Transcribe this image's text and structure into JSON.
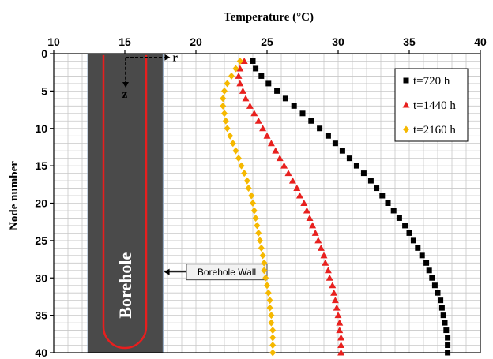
{
  "chart_data": {
    "type": "scatter",
    "title": "",
    "xlabel": "Temperature (°C)",
    "ylabel": "Node number",
    "x_axis_position": "top",
    "y_axis_inverted": true,
    "xlim": [
      10,
      40
    ],
    "ylim": [
      0,
      40
    ],
    "x_ticks": [
      10,
      15,
      20,
      25,
      30,
      35,
      40
    ],
    "y_ticks": [
      0,
      5,
      10,
      15,
      20,
      25,
      30,
      35,
      40
    ],
    "grid": true,
    "legend_position": "top-right",
    "series": [
      {
        "name": "t=720 h",
        "marker": "square",
        "color": "#000000",
        "points": [
          [
            24.0,
            1
          ],
          [
            24.2,
            2
          ],
          [
            24.6,
            3
          ],
          [
            25.1,
            4
          ],
          [
            25.7,
            5
          ],
          [
            26.3,
            6
          ],
          [
            26.9,
            7
          ],
          [
            27.5,
            8
          ],
          [
            28.1,
            9
          ],
          [
            28.7,
            10
          ],
          [
            29.3,
            11
          ],
          [
            29.8,
            12
          ],
          [
            30.3,
            13
          ],
          [
            30.8,
            14
          ],
          [
            31.3,
            15
          ],
          [
            31.8,
            16
          ],
          [
            32.3,
            17
          ],
          [
            32.7,
            18
          ],
          [
            33.1,
            19
          ],
          [
            33.5,
            20
          ],
          [
            33.9,
            21
          ],
          [
            34.3,
            22
          ],
          [
            34.7,
            23
          ],
          [
            35.0,
            24
          ],
          [
            35.3,
            25
          ],
          [
            35.6,
            26
          ],
          [
            35.9,
            27
          ],
          [
            36.2,
            28
          ],
          [
            36.4,
            29
          ],
          [
            36.6,
            30
          ],
          [
            36.8,
            31
          ],
          [
            37.0,
            32
          ],
          [
            37.2,
            33
          ],
          [
            37.3,
            34
          ],
          [
            37.4,
            35
          ],
          [
            37.5,
            36
          ],
          [
            37.6,
            37
          ],
          [
            37.7,
            38
          ],
          [
            37.7,
            39
          ],
          [
            37.7,
            40
          ]
        ]
      },
      {
        "name": "t=1440 h",
        "marker": "triangle",
        "color": "#e8201e",
        "points": [
          [
            23.4,
            1
          ],
          [
            23.1,
            2
          ],
          [
            23.0,
            3
          ],
          [
            23.1,
            4
          ],
          [
            23.3,
            5
          ],
          [
            23.5,
            6
          ],
          [
            23.8,
            7
          ],
          [
            24.1,
            8
          ],
          [
            24.4,
            9
          ],
          [
            24.7,
            10
          ],
          [
            25.0,
            11
          ],
          [
            25.3,
            12
          ],
          [
            25.6,
            13
          ],
          [
            25.9,
            14
          ],
          [
            26.2,
            15
          ],
          [
            26.5,
            16
          ],
          [
            26.8,
            17
          ],
          [
            27.1,
            18
          ],
          [
            27.3,
            19
          ],
          [
            27.6,
            20
          ],
          [
            27.8,
            21
          ],
          [
            28.0,
            22
          ],
          [
            28.2,
            23
          ],
          [
            28.4,
            24
          ],
          [
            28.6,
            25
          ],
          [
            28.8,
            26
          ],
          [
            29.0,
            27
          ],
          [
            29.1,
            28
          ],
          [
            29.3,
            29
          ],
          [
            29.4,
            30
          ],
          [
            29.6,
            31
          ],
          [
            29.7,
            32
          ],
          [
            29.8,
            33
          ],
          [
            29.9,
            34
          ],
          [
            30.0,
            35
          ],
          [
            30.1,
            36
          ],
          [
            30.1,
            37
          ],
          [
            30.2,
            38
          ],
          [
            30.2,
            39
          ],
          [
            30.2,
            40
          ]
        ]
      },
      {
        "name": "t=2160 h",
        "marker": "diamond",
        "color": "#f5b800",
        "points": [
          [
            23.1,
            1
          ],
          [
            22.8,
            2
          ],
          [
            22.5,
            3
          ],
          [
            22.2,
            4
          ],
          [
            22.0,
            5
          ],
          [
            21.9,
            6
          ],
          [
            21.9,
            7
          ],
          [
            22.0,
            8
          ],
          [
            22.1,
            9
          ],
          [
            22.2,
            10
          ],
          [
            22.4,
            11
          ],
          [
            22.6,
            12
          ],
          [
            22.8,
            13
          ],
          [
            23.0,
            14
          ],
          [
            23.2,
            15
          ],
          [
            23.4,
            16
          ],
          [
            23.6,
            17
          ],
          [
            23.7,
            18
          ],
          [
            23.9,
            19
          ],
          [
            24.0,
            20
          ],
          [
            24.1,
            21
          ],
          [
            24.2,
            22
          ],
          [
            24.3,
            23
          ],
          [
            24.4,
            24
          ],
          [
            24.5,
            25
          ],
          [
            24.6,
            26
          ],
          [
            24.7,
            27
          ],
          [
            24.8,
            28
          ],
          [
            24.8,
            29
          ],
          [
            24.9,
            30
          ],
          [
            25.0,
            31
          ],
          [
            25.1,
            32
          ],
          [
            25.2,
            33
          ],
          [
            25.2,
            34
          ],
          [
            25.3,
            35
          ],
          [
            25.3,
            36
          ],
          [
            25.4,
            37
          ],
          [
            25.4,
            38
          ],
          [
            25.4,
            39
          ],
          [
            25.4,
            40
          ]
        ]
      }
    ],
    "annotations": {
      "borehole_label": "Borehole",
      "borehole_wall_label": "Borehole Wall",
      "radial_axis_label": "r",
      "depth_axis_label": "z",
      "borehole_x_range": [
        12.4,
        17.7
      ],
      "pipe_x_range": [
        13.5,
        16.5
      ]
    }
  },
  "colors": {
    "borehole_fill": "#4a4a4a",
    "pipe": "#e81e1e",
    "grid": "#c8c8c8",
    "axis": "#000000"
  }
}
